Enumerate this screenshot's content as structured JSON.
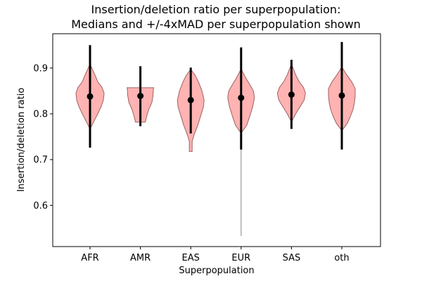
{
  "chart_data": {
    "type": "violin",
    "title_line1": "Insertion/deletion ratio per superpopulation:",
    "title_line2": "Medians and +/-4xMAD per superpopulation shown",
    "xlabel": "Superpopulation",
    "ylabel": "Insertion/deletion ratio",
    "ylim": [
      0.51,
      0.975
    ],
    "yticks": [
      0.6,
      0.7,
      0.8,
      0.9
    ],
    "ytick_labels": [
      "0.6",
      "0.7",
      "0.8",
      "0.9"
    ],
    "categories": [
      "AFR",
      "AMR",
      "EAS",
      "EUR",
      "SAS",
      "oth"
    ],
    "violin_color": "#ff9999",
    "violin_edge_color": "#a06060",
    "whisker_color": "#000000",
    "outlier_line_color": "#999999",
    "groups": [
      {
        "name": "AFR",
        "median": 0.838,
        "lower": 0.726,
        "upper": 0.95,
        "data_min": 0.77,
        "data_max": 0.905,
        "density": [
          [
            0.77,
            0.05
          ],
          [
            0.785,
            0.3
          ],
          [
            0.8,
            0.55
          ],
          [
            0.815,
            0.78
          ],
          [
            0.83,
            0.95
          ],
          [
            0.845,
            1.0
          ],
          [
            0.858,
            0.85
          ],
          [
            0.87,
            0.55
          ],
          [
            0.885,
            0.35
          ],
          [
            0.905,
            0.05
          ]
        ]
      },
      {
        "name": "AMR",
        "median": 0.839,
        "lower": 0.773,
        "upper": 0.904,
        "data_min": 0.782,
        "data_max": 0.857,
        "density": [
          [
            0.782,
            0.35
          ],
          [
            0.795,
            0.45
          ],
          [
            0.81,
            0.6
          ],
          [
            0.825,
            0.82
          ],
          [
            0.84,
            0.9
          ],
          [
            0.852,
            0.92
          ],
          [
            0.857,
            0.95
          ]
        ]
      },
      {
        "name": "EAS",
        "median": 0.83,
        "lower": 0.757,
        "upper": 0.901,
        "data_min": 0.718,
        "data_max": 0.895,
        "density": [
          [
            0.718,
            0.1
          ],
          [
            0.728,
            0.1
          ],
          [
            0.74,
            0.1
          ],
          [
            0.755,
            0.25
          ],
          [
            0.775,
            0.5
          ],
          [
            0.795,
            0.7
          ],
          [
            0.815,
            0.9
          ],
          [
            0.83,
            0.95
          ],
          [
            0.85,
            0.8
          ],
          [
            0.87,
            0.55
          ],
          [
            0.885,
            0.3
          ],
          [
            0.895,
            0.05
          ]
        ]
      },
      {
        "name": "EUR",
        "median": 0.835,
        "lower": 0.722,
        "upper": 0.945,
        "data_min": 0.533,
        "data_max": 0.895,
        "density": [
          [
            0.76,
            0.05
          ],
          [
            0.775,
            0.4
          ],
          [
            0.795,
            0.62
          ],
          [
            0.815,
            0.82
          ],
          [
            0.835,
            0.95
          ],
          [
            0.85,
            0.88
          ],
          [
            0.865,
            0.6
          ],
          [
            0.88,
            0.3
          ],
          [
            0.895,
            0.05
          ]
        ]
      },
      {
        "name": "SAS",
        "median": 0.842,
        "lower": 0.767,
        "upper": 0.918,
        "data_min": 0.785,
        "data_max": 0.905,
        "density": [
          [
            0.785,
            0.05
          ],
          [
            0.8,
            0.3
          ],
          [
            0.815,
            0.6
          ],
          [
            0.83,
            0.9
          ],
          [
            0.845,
            1.0
          ],
          [
            0.858,
            0.85
          ],
          [
            0.87,
            0.55
          ],
          [
            0.885,
            0.3
          ],
          [
            0.905,
            0.05
          ]
        ]
      },
      {
        "name": "oth",
        "median": 0.84,
        "lower": 0.722,
        "upper": 0.957,
        "data_min": 0.765,
        "data_max": 0.9,
        "density": [
          [
            0.765,
            0.05
          ],
          [
            0.78,
            0.4
          ],
          [
            0.795,
            0.62
          ],
          [
            0.81,
            0.8
          ],
          [
            0.825,
            0.9
          ],
          [
            0.84,
            0.95
          ],
          [
            0.855,
            0.95
          ],
          [
            0.87,
            0.7
          ],
          [
            0.885,
            0.35
          ],
          [
            0.9,
            0.05
          ]
        ]
      }
    ],
    "outlier_tail": {
      "group": "EUR",
      "from": 0.76,
      "to": 0.533
    }
  }
}
